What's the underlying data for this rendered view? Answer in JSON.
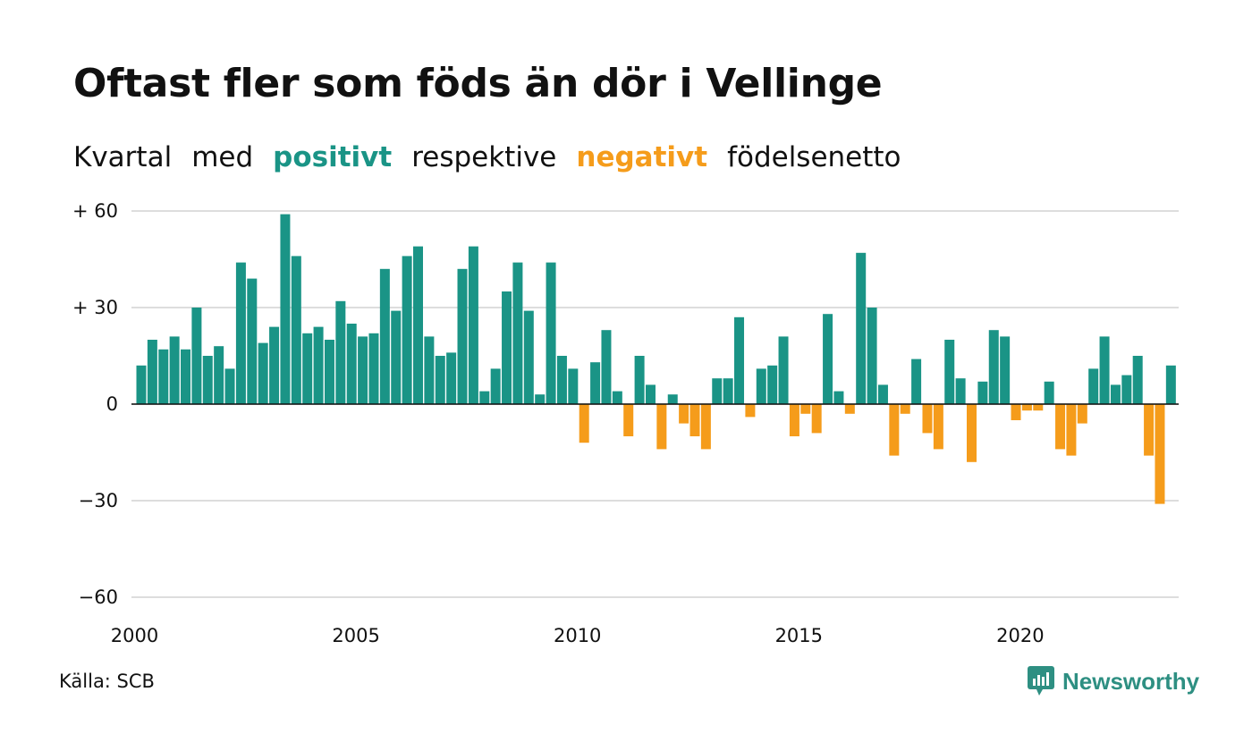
{
  "title": "Oftast fler som föds än dör i Vellinge",
  "subtitle": {
    "part1": "Kvartal",
    "part2": "med",
    "positive": "positivt",
    "part3": "respektive",
    "negative": "negativt",
    "part4": "födelsenetto"
  },
  "source": "Källa: SCB",
  "brand": "Newsworthy",
  "colors": {
    "positive": "#1a9486",
    "negative": "#f59c1b",
    "grid": "#dddddd",
    "zero": "#111111",
    "brand": "#2e8f82"
  },
  "chart_data": {
    "type": "bar",
    "x_start": "2000",
    "x_step": "quarter",
    "xticks": [
      "2000",
      "2005",
      "2010",
      "2015",
      "2020"
    ],
    "yticks": [
      "+ 60",
      "+ 30",
      "0",
      "−30",
      "−60"
    ],
    "ylim": [
      -60,
      60
    ],
    "ytick_values": [
      60,
      30,
      0,
      -30,
      -60
    ],
    "grid": true,
    "values": [
      12,
      20,
      17,
      21,
      17,
      30,
      15,
      18,
      11,
      44,
      39,
      19,
      24,
      59,
      46,
      22,
      24,
      20,
      32,
      25,
      21,
      22,
      42,
      29,
      46,
      49,
      21,
      15,
      16,
      42,
      49,
      4,
      11,
      35,
      44,
      29,
      3,
      44,
      15,
      11,
      -12,
      13,
      23,
      4,
      -10,
      15,
      6,
      -14,
      3,
      -6,
      -10,
      -14,
      8,
      8,
      27,
      -4,
      11,
      12,
      21,
      -10,
      -3,
      -9,
      28,
      4,
      -3,
      47,
      30,
      6,
      -16,
      -3,
      14,
      -9,
      -14,
      20,
      8,
      -18,
      7,
      23,
      21,
      -5,
      -2,
      -2,
      7,
      -14,
      -16,
      -6,
      11,
      21,
      6,
      9,
      15,
      -16,
      -31,
      12
    ]
  }
}
